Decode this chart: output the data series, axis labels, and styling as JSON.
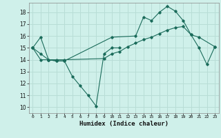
{
  "title": "",
  "xlabel": "Humidex (Indice chaleur)",
  "ylabel": "",
  "bg_color": "#cff0ea",
  "grid_color": "#b8ddd6",
  "line_color": "#1a6b5a",
  "xlim": [
    -0.5,
    23.5
  ],
  "ylim": [
    9.5,
    18.8
  ],
  "yticks": [
    10,
    11,
    12,
    13,
    14,
    15,
    16,
    17,
    18
  ],
  "xticks": [
    0,
    1,
    2,
    3,
    4,
    5,
    6,
    7,
    8,
    9,
    10,
    11,
    12,
    13,
    14,
    15,
    16,
    17,
    18,
    19,
    20,
    21,
    22,
    23
  ],
  "xtick_labels": [
    "0",
    "1",
    "2",
    "3",
    "4",
    "5",
    "6",
    "7",
    "8",
    "9",
    "10",
    "11",
    "12",
    "13",
    "14",
    "15",
    "16",
    "17",
    "18",
    "19",
    "20",
    "21",
    "22",
    "23"
  ],
  "series": [
    {
      "x": [
        0,
        1,
        2,
        3,
        4,
        10,
        13,
        14,
        15,
        16,
        17,
        18,
        19,
        20,
        21,
        23
      ],
      "y": [
        15.0,
        15.9,
        14.0,
        13.9,
        13.9,
        15.9,
        16.0,
        17.6,
        17.3,
        18.0,
        18.5,
        18.1,
        17.3,
        16.1,
        15.9,
        15.1
      ]
    },
    {
      "x": [
        0,
        1,
        2,
        3,
        4,
        5,
        6,
        7,
        8,
        9,
        10,
        11
      ],
      "y": [
        15.0,
        14.0,
        14.0,
        13.9,
        13.9,
        12.6,
        11.8,
        11.0,
        10.1,
        14.5,
        15.0,
        15.0
      ]
    },
    {
      "x": [
        0,
        1,
        2,
        3,
        4,
        9,
        10,
        11,
        12,
        13,
        14,
        15,
        16,
        17,
        18,
        19,
        20,
        21,
        22,
        23
      ],
      "y": [
        15.0,
        14.5,
        14.0,
        14.0,
        14.0,
        14.1,
        14.5,
        14.7,
        15.1,
        15.4,
        15.7,
        15.9,
        16.2,
        16.5,
        16.7,
        16.8,
        16.1,
        15.0,
        13.6,
        15.1
      ]
    }
  ]
}
